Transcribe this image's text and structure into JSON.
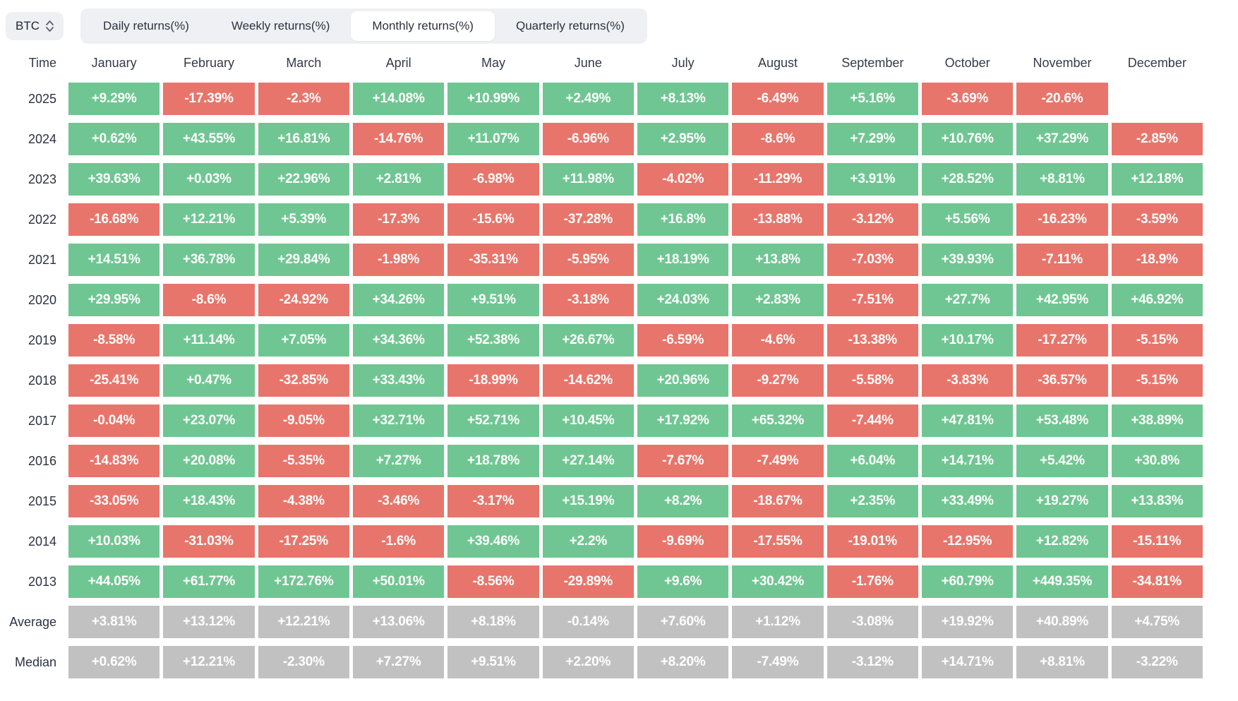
{
  "controls": {
    "asset_selector": {
      "value": "BTC",
      "icon": "updown-chevron-icon"
    },
    "tabs": [
      {
        "label": "Daily returns(%)",
        "active": false
      },
      {
        "label": "Weekly returns(%)",
        "active": false
      },
      {
        "label": "Monthly returns(%)",
        "active": true
      },
      {
        "label": "Quarterly returns(%)",
        "active": false
      }
    ]
  },
  "chart_data": {
    "type": "heatmap",
    "title": "BTC Monthly returns(%)",
    "row_header": "Time",
    "columns": [
      "January",
      "February",
      "March",
      "April",
      "May",
      "June",
      "July",
      "August",
      "September",
      "October",
      "November",
      "December"
    ],
    "legend": "green = positive monthly return, red = negative monthly return, gray = summary rows",
    "colors": {
      "positive": "#70c692",
      "negative": "#e8756b",
      "summary": "#c1c1c1"
    },
    "rows": [
      {
        "label": "2025",
        "type": "year",
        "values": [
          "+9.29%",
          "-17.39%",
          "-2.3%",
          "+14.08%",
          "+10.99%",
          "+2.49%",
          "+8.13%",
          "-6.49%",
          "+5.16%",
          "-3.69%",
          "-20.6%",
          null
        ]
      },
      {
        "label": "2024",
        "type": "year",
        "values": [
          "+0.62%",
          "+43.55%",
          "+16.81%",
          "-14.76%",
          "+11.07%",
          "-6.96%",
          "+2.95%",
          "-8.6%",
          "+7.29%",
          "+10.76%",
          "+37.29%",
          "-2.85%"
        ]
      },
      {
        "label": "2023",
        "type": "year",
        "values": [
          "+39.63%",
          "+0.03%",
          "+22.96%",
          "+2.81%",
          "-6.98%",
          "+11.98%",
          "-4.02%",
          "-11.29%",
          "+3.91%",
          "+28.52%",
          "+8.81%",
          "+12.18%"
        ]
      },
      {
        "label": "2022",
        "type": "year",
        "values": [
          "-16.68%",
          "+12.21%",
          "+5.39%",
          "-17.3%",
          "-15.6%",
          "-37.28%",
          "+16.8%",
          "-13.88%",
          "-3.12%",
          "+5.56%",
          "-16.23%",
          "-3.59%"
        ]
      },
      {
        "label": "2021",
        "type": "year",
        "values": [
          "+14.51%",
          "+36.78%",
          "+29.84%",
          "-1.98%",
          "-35.31%",
          "-5.95%",
          "+18.19%",
          "+13.8%",
          "-7.03%",
          "+39.93%",
          "-7.11%",
          "-18.9%"
        ]
      },
      {
        "label": "2020",
        "type": "year",
        "values": [
          "+29.95%",
          "-8.6%",
          "-24.92%",
          "+34.26%",
          "+9.51%",
          "-3.18%",
          "+24.03%",
          "+2.83%",
          "-7.51%",
          "+27.7%",
          "+42.95%",
          "+46.92%"
        ]
      },
      {
        "label": "2019",
        "type": "year",
        "values": [
          "-8.58%",
          "+11.14%",
          "+7.05%",
          "+34.36%",
          "+52.38%",
          "+26.67%",
          "-6.59%",
          "-4.6%",
          "-13.38%",
          "+10.17%",
          "-17.27%",
          "-5.15%"
        ]
      },
      {
        "label": "2018",
        "type": "year",
        "values": [
          "-25.41%",
          "+0.47%",
          "-32.85%",
          "+33.43%",
          "-18.99%",
          "-14.62%",
          "+20.96%",
          "-9.27%",
          "-5.58%",
          "-3.83%",
          "-36.57%",
          "-5.15%"
        ]
      },
      {
        "label": "2017",
        "type": "year",
        "values": [
          "-0.04%",
          "+23.07%",
          "-9.05%",
          "+32.71%",
          "+52.71%",
          "+10.45%",
          "+17.92%",
          "+65.32%",
          "-7.44%",
          "+47.81%",
          "+53.48%",
          "+38.89%"
        ]
      },
      {
        "label": "2016",
        "type": "year",
        "values": [
          "-14.83%",
          "+20.08%",
          "-5.35%",
          "+7.27%",
          "+18.78%",
          "+27.14%",
          "-7.67%",
          "-7.49%",
          "+6.04%",
          "+14.71%",
          "+5.42%",
          "+30.8%"
        ]
      },
      {
        "label": "2015",
        "type": "year",
        "values": [
          "-33.05%",
          "+18.43%",
          "-4.38%",
          "-3.46%",
          "-3.17%",
          "+15.19%",
          "+8.2%",
          "-18.67%",
          "+2.35%",
          "+33.49%",
          "+19.27%",
          "+13.83%"
        ]
      },
      {
        "label": "2014",
        "type": "year",
        "values": [
          "+10.03%",
          "-31.03%",
          "-17.25%",
          "-1.6%",
          "+39.46%",
          "+2.2%",
          "-9.69%",
          "-17.55%",
          "-19.01%",
          "-12.95%",
          "+12.82%",
          "-15.11%"
        ]
      },
      {
        "label": "2013",
        "type": "year",
        "values": [
          "+44.05%",
          "+61.77%",
          "+172.76%",
          "+50.01%",
          "-8.56%",
          "-29.89%",
          "+9.6%",
          "+30.42%",
          "-1.76%",
          "+60.79%",
          "+449.35%",
          "-34.81%"
        ]
      },
      {
        "label": "Average",
        "type": "summary",
        "values": [
          "+3.81%",
          "+13.12%",
          "+12.21%",
          "+13.06%",
          "+8.18%",
          "-0.14%",
          "+7.60%",
          "+1.12%",
          "-3.08%",
          "+19.92%",
          "+40.89%",
          "+4.75%"
        ]
      },
      {
        "label": "Median",
        "type": "summary",
        "values": [
          "+0.62%",
          "+12.21%",
          "-2.30%",
          "+7.27%",
          "+9.51%",
          "+2.20%",
          "+8.20%",
          "-7.49%",
          "-3.12%",
          "+14.71%",
          "+8.81%",
          "-3.22%"
        ]
      }
    ]
  }
}
